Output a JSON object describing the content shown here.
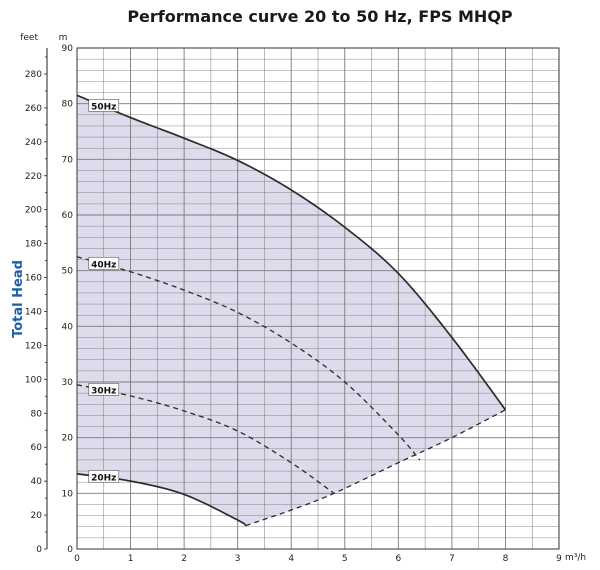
{
  "chart_data": {
    "type": "line",
    "title": "Performance curve 20 to 50 Hz, FPS MHQP",
    "ylabel": "Total Head",
    "y_unit_left": "feet",
    "y_unit_right": "m",
    "x_unit": "m³/h",
    "xlim": [
      0,
      9
    ],
    "ylim": [
      0,
      90
    ],
    "y2lim": [
      0,
      295.3
    ],
    "x_ticks": [
      "0",
      "1",
      "2",
      "3",
      "4",
      "5",
      "6",
      "7",
      "8",
      "9"
    ],
    "y_ticks": [
      "0",
      "10",
      "20",
      "30",
      "40",
      "50",
      "60",
      "70",
      "80",
      "90"
    ],
    "y2_ticks": [
      "0",
      "20",
      "40",
      "60",
      "80",
      "100",
      "120",
      "140",
      "160",
      "180",
      "200",
      "220",
      "240",
      "260",
      "280"
    ],
    "grid": true,
    "colors": {
      "fill": "#dcdcec",
      "curve": "#2b2b2b",
      "grid": "#7a7a7a"
    },
    "series": [
      {
        "name": "50Hz",
        "style": "solid",
        "x": [
          0,
          1,
          2,
          3,
          4,
          5,
          6,
          7,
          8
        ],
        "y": [
          81.5,
          77.5,
          73.8,
          69.8,
          64.5,
          57.8,
          49.5,
          38.0,
          25.0
        ]
      },
      {
        "name": "40Hz",
        "style": "dashed",
        "x": [
          0,
          1,
          2,
          3,
          4,
          5,
          6,
          6.4
        ],
        "y": [
          52.5,
          49.8,
          46.5,
          42.5,
          37.0,
          30.0,
          20.5,
          16.0
        ]
      },
      {
        "name": "30Hz",
        "style": "dashed",
        "x": [
          0,
          1,
          2,
          3,
          4,
          4.8
        ],
        "y": [
          29.5,
          27.5,
          24.8,
          21.2,
          15.5,
          10.0
        ]
      },
      {
        "name": "20Hz",
        "style": "solid",
        "x": [
          0,
          1,
          2,
          3,
          3.15
        ],
        "y": [
          13.5,
          12.2,
          9.8,
          5.2,
          4.2
        ]
      },
      {
        "name": "",
        "style": "dashed",
        "x": [
          3.15,
          4,
          4.8,
          6,
          7,
          8
        ],
        "y": [
          4.2,
          7.0,
          10.0,
          15.5,
          20.0,
          25.0
        ]
      }
    ]
  }
}
